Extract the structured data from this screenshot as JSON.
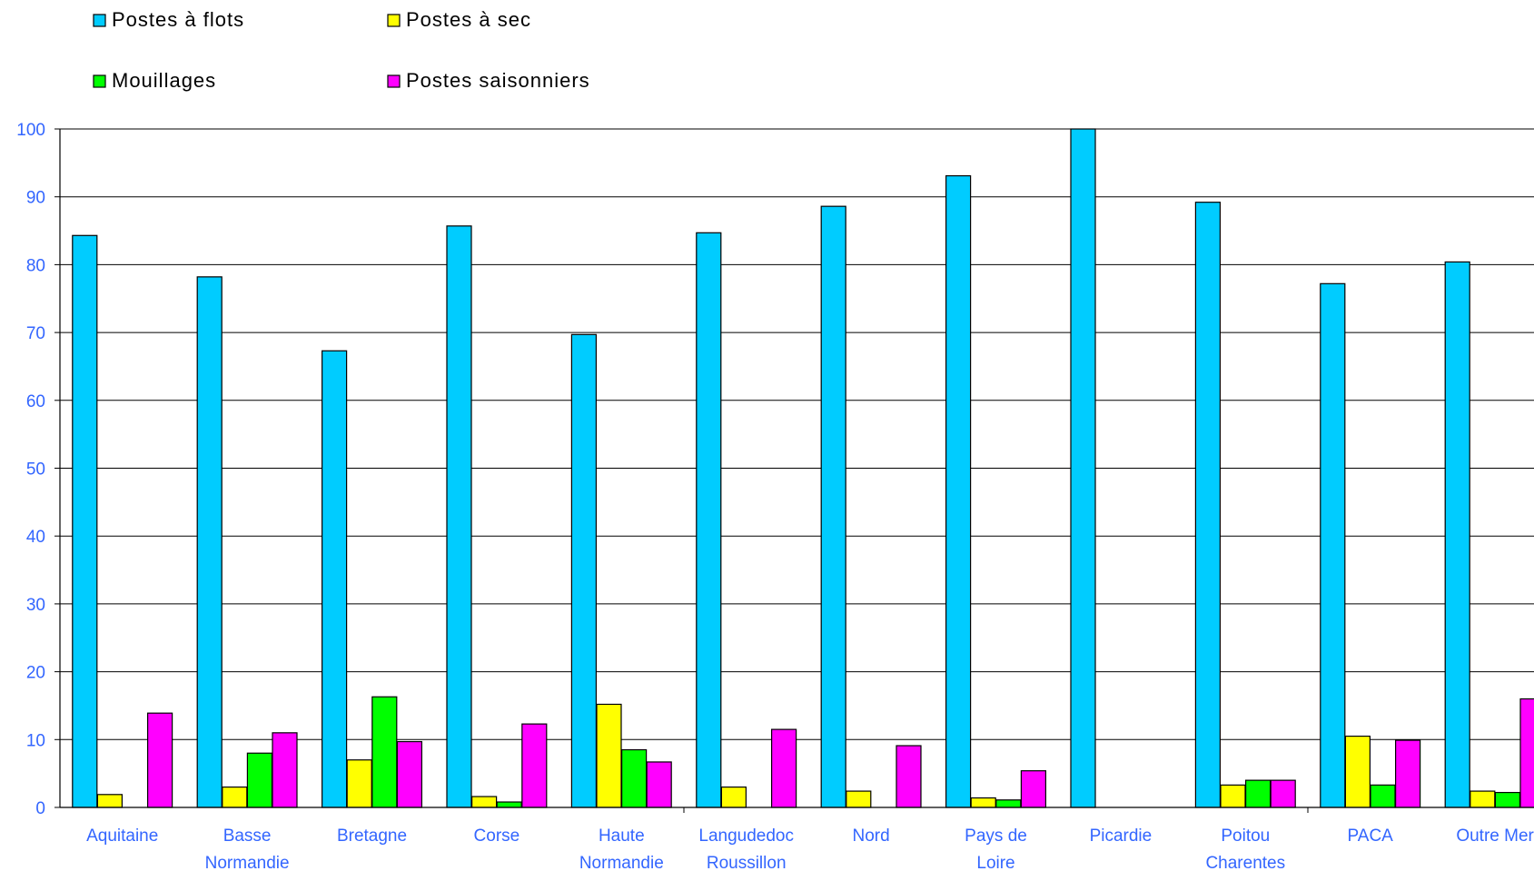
{
  "chart_data": {
    "type": "bar",
    "title": "",
    "xlabel": "",
    "ylabel": "",
    "ylim": [
      0,
      100
    ],
    "yticks": [
      0,
      10,
      20,
      30,
      40,
      50,
      60,
      70,
      80,
      90,
      100
    ],
    "grid": true,
    "legend_position": "top-left",
    "categories": [
      [
        "Aquitaine"
      ],
      [
        "Basse",
        "Normandie"
      ],
      [
        "Bretagne"
      ],
      [
        "Corse"
      ],
      [
        "Haute",
        "Normandie"
      ],
      [
        "Langudedoc",
        "Roussillon"
      ],
      [
        "Nord"
      ],
      [
        "Pays de",
        "Loire"
      ],
      [
        "Picardie"
      ],
      [
        "Poitou",
        "Charentes"
      ],
      [
        "PACA"
      ],
      [
        "Outre Mer"
      ]
    ],
    "series": [
      {
        "name": "Postes à flots",
        "color": "#00ccff",
        "values": [
          84.3,
          78.2,
          67.3,
          85.7,
          69.7,
          84.7,
          88.6,
          93.1,
          100,
          89.2,
          77.2,
          80.4
        ]
      },
      {
        "name": "Postes à sec",
        "color": "#ffff00",
        "values": [
          1.9,
          3.0,
          7.0,
          1.6,
          15.2,
          3.0,
          2.4,
          1.4,
          0,
          3.3,
          10.5,
          2.4
        ]
      },
      {
        "name": "Mouillages",
        "color": "#00ff00",
        "values": [
          0,
          8.0,
          16.3,
          0.8,
          8.5,
          0,
          0,
          1.1,
          0,
          4.0,
          3.3,
          2.2
        ]
      },
      {
        "name": "Postes saisonniers",
        "color": "#ff00ff",
        "values": [
          13.9,
          11.0,
          9.7,
          12.3,
          6.7,
          11.5,
          9.1,
          5.4,
          0,
          4.0,
          9.9,
          16.0
        ]
      }
    ]
  }
}
